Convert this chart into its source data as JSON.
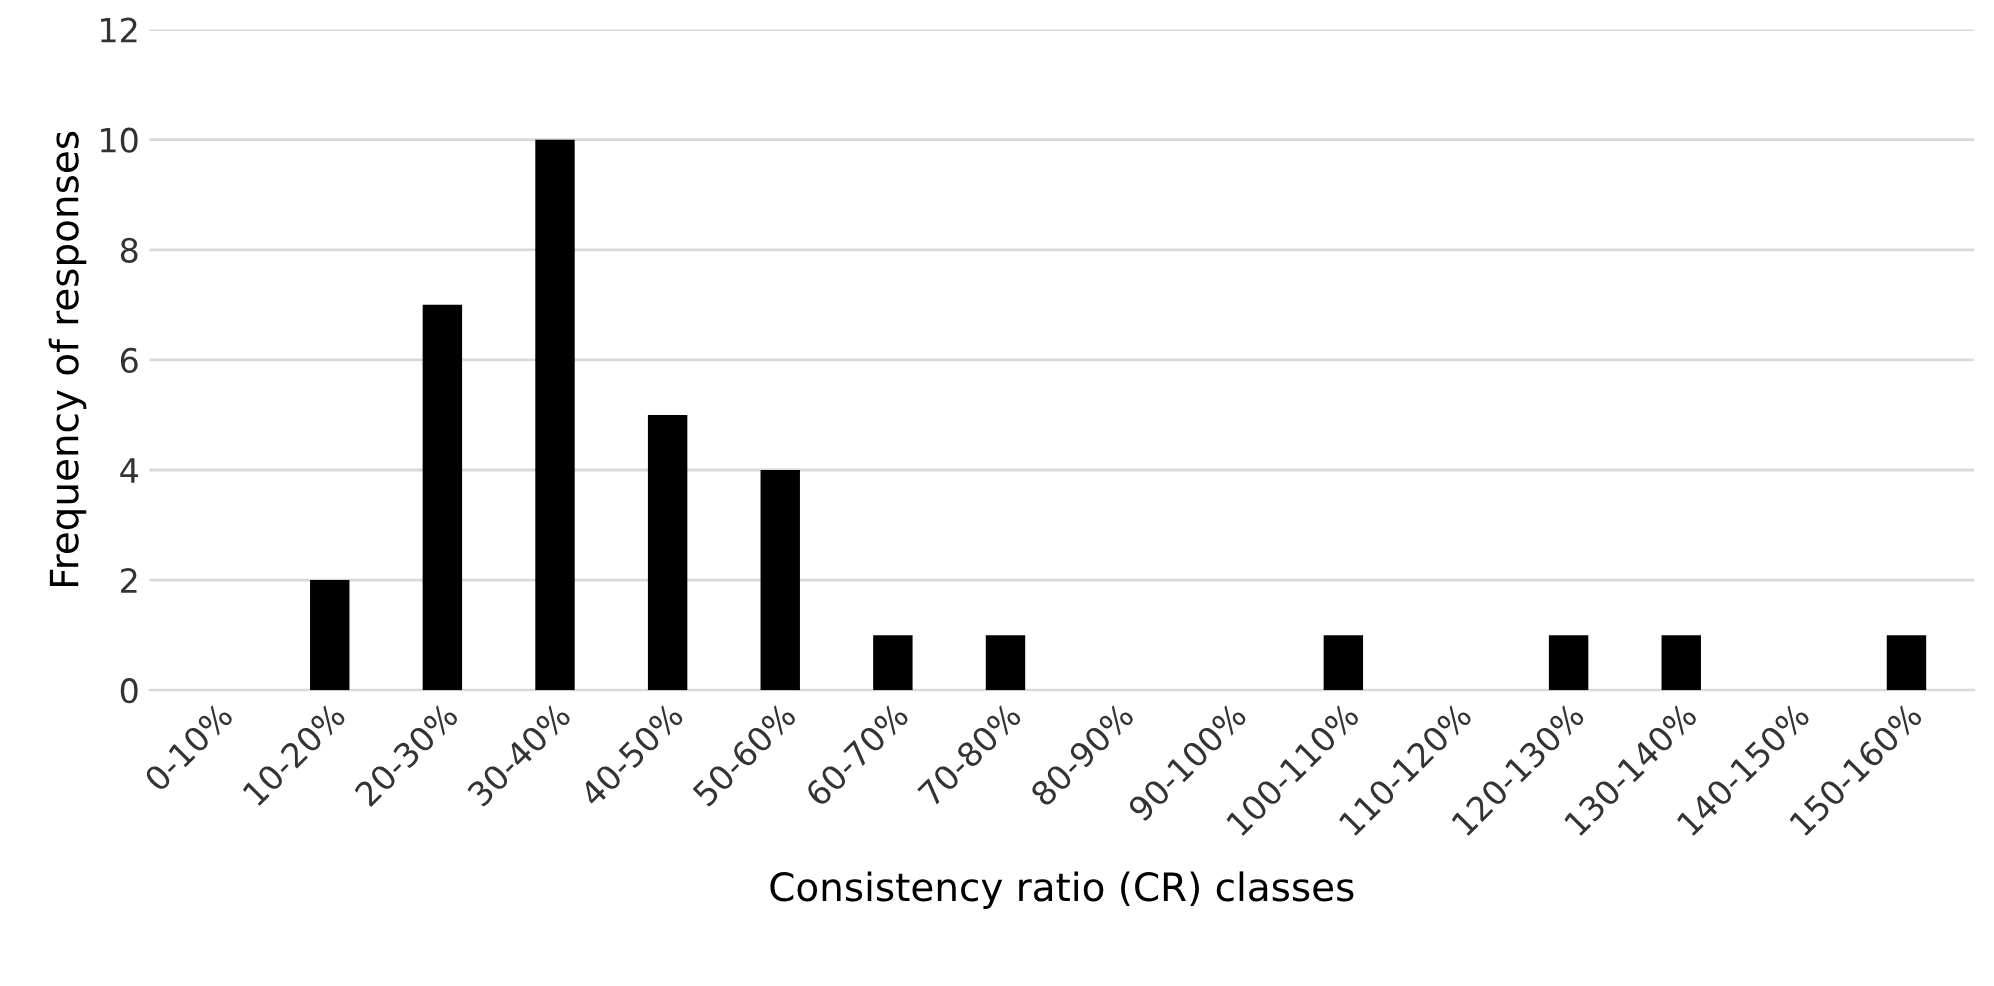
{
  "chart_data": {
    "type": "bar",
    "xlabel": "Consistency ratio (CR) classes",
    "ylabel": "Frequency of responses",
    "categories": [
      "0-10%",
      "10-20%",
      "20-30%",
      "30-40%",
      "40-50%",
      "50-60%",
      "60-70%",
      "70-80%",
      "80-90%",
      "90-100%",
      "100-110%",
      "110-120%",
      "120-130%",
      "130-140%",
      "140-150%",
      "150-160%"
    ],
    "values": [
      0,
      2,
      7,
      10,
      5,
      4,
      1,
      1,
      0,
      0,
      1,
      0,
      1,
      1,
      0,
      1
    ],
    "color": "#000000",
    "ylim": [
      0,
      12
    ],
    "yticks": [
      0,
      2,
      4,
      6,
      8,
      10,
      12
    ],
    "grid": "y"
  }
}
